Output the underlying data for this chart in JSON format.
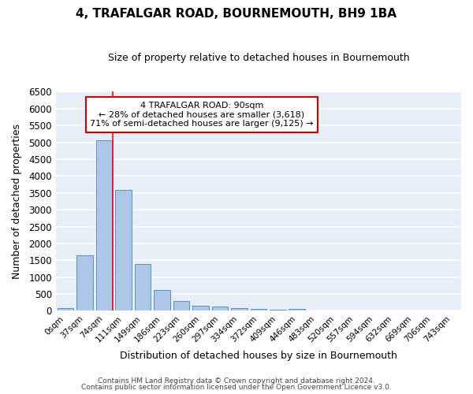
{
  "title": "4, TRAFALGAR ROAD, BOURNEMOUTH, BH9 1BA",
  "subtitle": "Size of property relative to detached houses in Bournemouth",
  "xlabel": "Distribution of detached houses by size in Bournemouth",
  "ylabel": "Number of detached properties",
  "bar_color": "#aec6e8",
  "bar_edge_color": "#5a8fc0",
  "background_color": "#e8eef8",
  "grid_color": "#ffffff",
  "fig_color": "#ffffff",
  "categories": [
    "0sqm",
    "37sqm",
    "74sqm",
    "111sqm",
    "149sqm",
    "186sqm",
    "223sqm",
    "260sqm",
    "297sqm",
    "334sqm",
    "372sqm",
    "409sqm",
    "446sqm",
    "483sqm",
    "520sqm",
    "557sqm",
    "594sqm",
    "632sqm",
    "669sqm",
    "706sqm",
    "743sqm"
  ],
  "values": [
    75,
    1650,
    5060,
    3580,
    1400,
    620,
    290,
    155,
    120,
    90,
    60,
    45,
    55,
    0,
    0,
    0,
    0,
    0,
    0,
    0,
    0
  ],
  "red_line_x": 2.43,
  "annotation_line1": "4 TRAFALGAR ROAD: 90sqm",
  "annotation_line2": "← 28% of detached houses are smaller (3,618)",
  "annotation_line3": "71% of semi-detached houses are larger (9,125) →",
  "annotation_box_color": "#ffffff",
  "annotation_box_edge": "#cc0000",
  "ylim": [
    0,
    6500
  ],
  "yticks": [
    0,
    500,
    1000,
    1500,
    2000,
    2500,
    3000,
    3500,
    4000,
    4500,
    5000,
    5500,
    6000,
    6500
  ],
  "footer1": "Contains HM Land Registry data © Crown copyright and database right 2024.",
  "footer2": "Contains public sector information licensed under the Open Government Licence v3.0."
}
